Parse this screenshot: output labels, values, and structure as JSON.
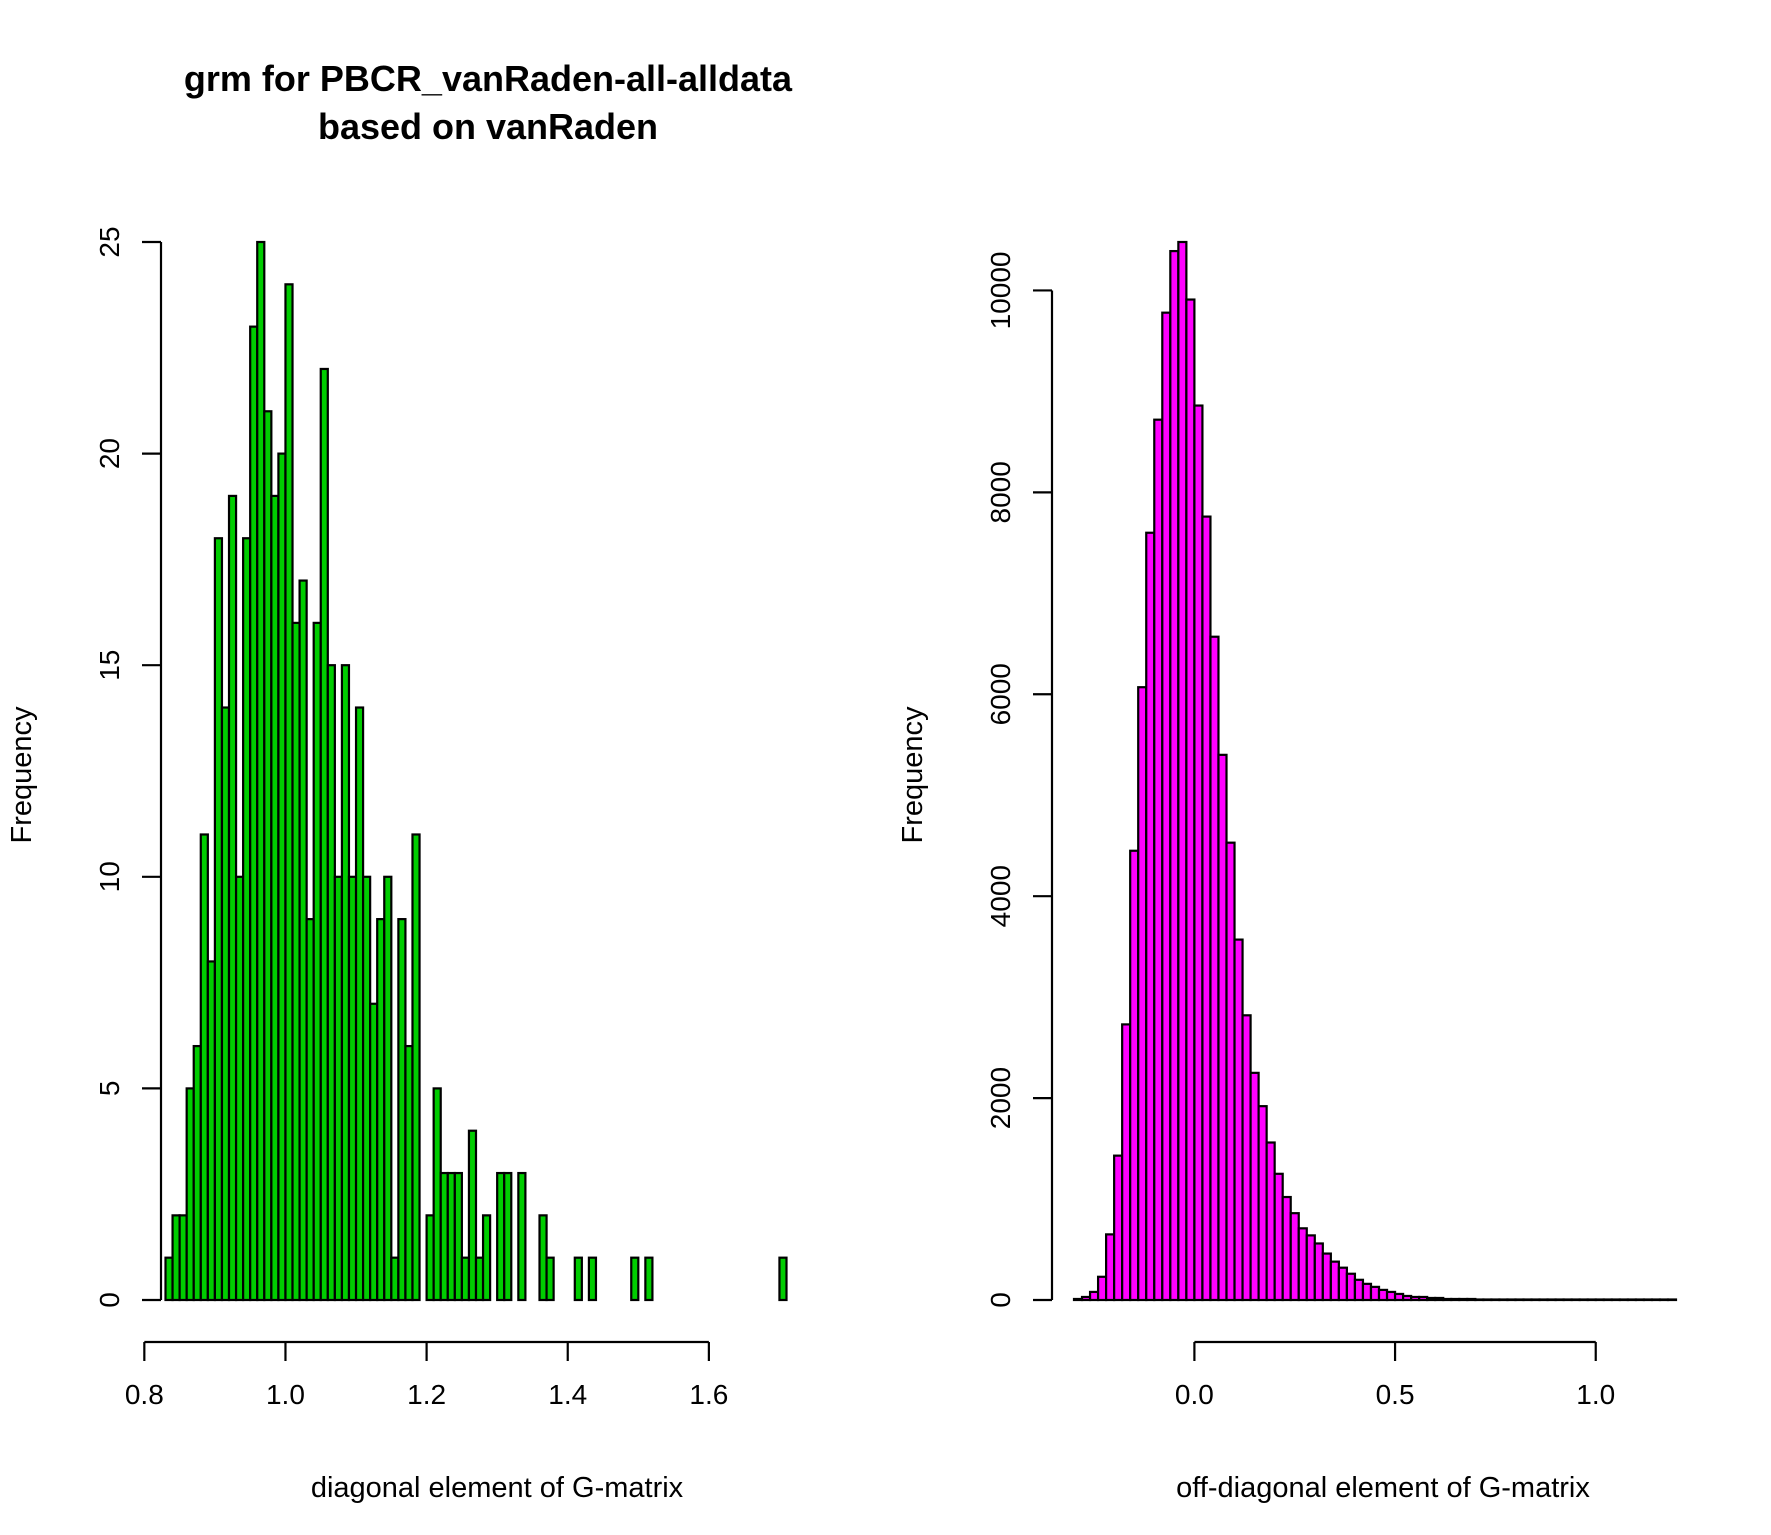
{
  "title": {
    "line1": "grm for PBCR_vanRaden-all-alldata",
    "line2": "based on vanRaden"
  },
  "colors": {
    "left_fill": "#00cd00",
    "right_fill": "#ff00ff",
    "stroke": "#000000"
  },
  "chart_data": [
    {
      "type": "bar",
      "subtype": "histogram",
      "title": "",
      "xlabel": "diagonal element of G-matrix",
      "ylabel": "Frequency",
      "bin_start": 0.83,
      "bin_width": 0.01,
      "values": [
        1,
        2,
        2,
        5,
        6,
        11,
        8,
        18,
        14,
        19,
        10,
        18,
        23,
        25,
        21,
        19,
        20,
        24,
        16,
        17,
        9,
        16,
        22,
        15,
        10,
        15,
        10,
        14,
        10,
        7,
        9,
        10,
        1,
        9,
        6,
        11,
        0,
        2,
        5,
        3,
        3,
        3,
        1,
        4,
        1,
        2,
        0,
        3,
        3,
        0,
        3,
        0,
        0,
        2,
        1,
        0,
        0,
        0,
        1,
        0,
        1,
        0,
        0,
        0,
        0,
        0,
        1,
        0,
        1,
        0,
        0,
        0,
        0,
        0,
        0,
        0,
        0,
        0,
        0,
        0,
        0,
        0,
        0,
        0,
        0,
        0,
        0,
        1
      ],
      "xlim": [
        0.8,
        1.7
      ],
      "ylim": [
        0,
        25
      ],
      "xticks": [
        "0.8",
        "1.0",
        "1.2",
        "1.4",
        "1.6"
      ],
      "xtick_values": [
        0.8,
        1.0,
        1.2,
        1.4,
        1.6
      ],
      "yticks": [
        "0",
        "5",
        "10",
        "15",
        "20",
        "25"
      ],
      "ytick_values": [
        0,
        5,
        10,
        15,
        20,
        25
      ],
      "fill": "#00cd00"
    },
    {
      "type": "bar",
      "subtype": "histogram",
      "title": "",
      "xlabel": "off-diagonal element of G-matrix",
      "ylabel": "Frequency",
      "bin_start": -0.3,
      "bin_width": 0.02,
      "values": [
        10,
        30,
        80,
        230,
        650,
        1430,
        2730,
        4450,
        6070,
        7600,
        8720,
        9780,
        10390,
        10480,
        9910,
        8860,
        7760,
        6570,
        5400,
        4530,
        3570,
        2820,
        2250,
        1920,
        1560,
        1250,
        1020,
        860,
        710,
        640,
        560,
        460,
        380,
        320,
        260,
        200,
        160,
        130,
        100,
        80,
        60,
        40,
        30,
        30,
        20,
        20,
        10,
        10,
        10,
        10,
        5,
        5,
        5,
        5,
        5,
        5,
        5,
        5,
        5,
        5,
        5,
        5,
        5,
        5,
        5,
        5,
        5,
        5,
        5,
        5,
        5,
        5,
        5,
        5,
        5
      ],
      "xlim": [
        -0.3,
        1.2
      ],
      "ylim": [
        0,
        10480
      ],
      "xticks": [
        "0.0",
        "0.5",
        "1.0"
      ],
      "xtick_values": [
        0,
        0.5,
        1.0
      ],
      "yticks": [
        "0",
        "2000",
        "4000",
        "6000",
        "8000",
        "10000"
      ],
      "ytick_values": [
        0,
        2000,
        4000,
        6000,
        8000,
        10000
      ],
      "fill": "#ff00ff"
    }
  ]
}
